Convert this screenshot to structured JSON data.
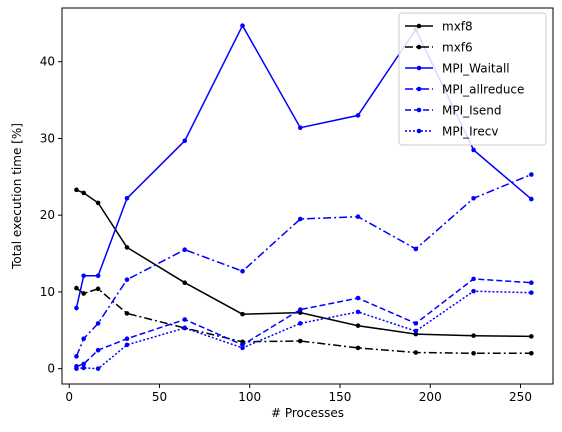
{
  "chart_data": {
    "type": "line",
    "title": "",
    "xlabel": "# Processes",
    "ylabel": "Total execution time [%]",
    "xlim": [
      -4,
      268
    ],
    "ylim": [
      -2,
      47
    ],
    "xticks": [
      0,
      50,
      100,
      150,
      200,
      250
    ],
    "yticks": [
      0,
      10,
      20,
      30,
      40
    ],
    "grid": false,
    "legend_position": "top-right",
    "series": [
      {
        "name": "mxf8",
        "color": "#000000",
        "dash": "solid",
        "x": [
          4,
          8,
          16,
          32,
          64,
          96,
          128,
          160,
          192,
          224,
          256
        ],
        "y": [
          23.3,
          22.9,
          21.6,
          15.8,
          11.2,
          7.1,
          7.3,
          5.6,
          4.5,
          4.3,
          4.2
        ]
      },
      {
        "name": "mxf6",
        "color": "#000000",
        "dash": "dashdot",
        "x": [
          4,
          8,
          16,
          32,
          64,
          96,
          128,
          160,
          192,
          224,
          256
        ],
        "y": [
          10.5,
          9.8,
          10.4,
          7.2,
          5.3,
          3.5,
          3.6,
          2.7,
          2.1,
          2.0,
          2.0
        ]
      },
      {
        "name": "MPI_Waitall",
        "color": "#0000ff",
        "dash": "solid",
        "x": [
          4,
          8,
          16,
          32,
          64,
          96,
          128,
          160,
          192,
          224,
          256
        ],
        "y": [
          7.9,
          12.1,
          12.1,
          22.2,
          29.7,
          44.7,
          31.4,
          33.0,
          44.2,
          28.5,
          22.1
        ]
      },
      {
        "name": "MPI_allreduce",
        "color": "#0000ff",
        "dash": "dashdot",
        "x": [
          4,
          8,
          16,
          32,
          64,
          96,
          128,
          160,
          192,
          224,
          256
        ],
        "y": [
          1.6,
          3.9,
          5.9,
          11.6,
          15.5,
          12.7,
          19.5,
          19.8,
          15.6,
          22.2,
          25.3
        ]
      },
      {
        "name": "MPI_Isend",
        "color": "#0000ff",
        "dash": "dashed",
        "x": [
          4,
          8,
          16,
          32,
          64,
          96,
          128,
          160,
          192,
          224,
          256
        ],
        "y": [
          0.3,
          0.6,
          2.4,
          3.9,
          6.4,
          3.1,
          7.7,
          9.2,
          5.9,
          11.7,
          11.2
        ]
      },
      {
        "name": "MPI_Irecv",
        "color": "#0000ff",
        "dash": "dotted",
        "x": [
          4,
          8,
          16,
          32,
          64,
          96,
          128,
          160,
          192,
          224,
          256
        ],
        "y": [
          0.0,
          0.1,
          0.0,
          3.1,
          5.3,
          2.7,
          5.9,
          7.4,
          4.9,
          10.1,
          9.9
        ]
      }
    ]
  }
}
